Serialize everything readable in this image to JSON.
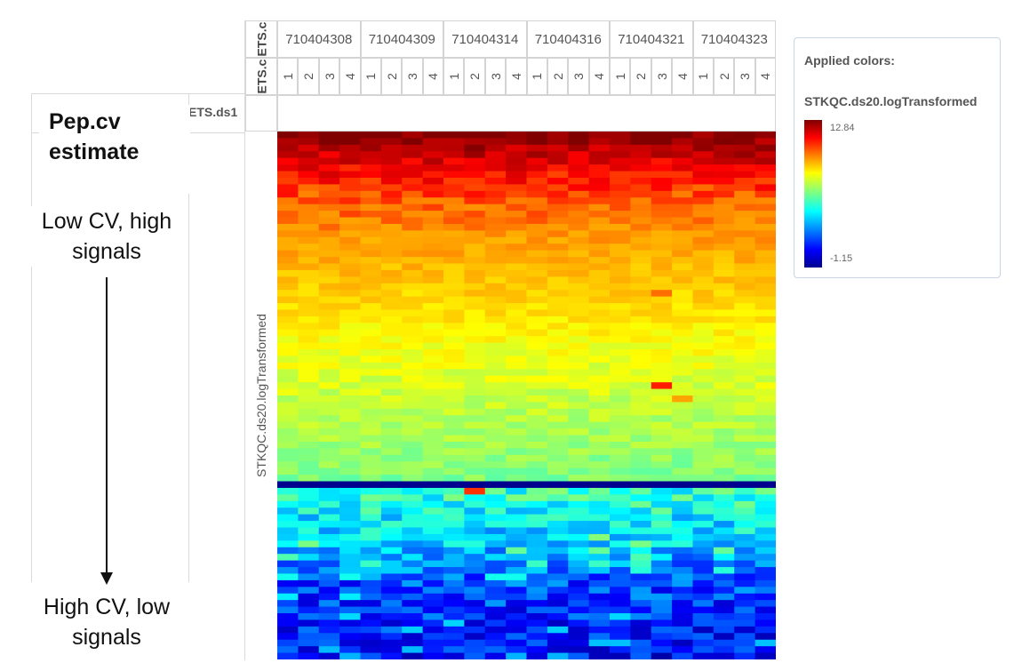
{
  "annotations": {
    "column_header_partial": "ETS.ds1",
    "pepcv_title": "Pep.cv estimate",
    "top_note": "Low CV, high signals",
    "bottom_note": "High CV, low signals"
  },
  "header": {
    "row1_label": "ETS.c",
    "row2_label": "ETS.c",
    "samples": [
      "710404308",
      "710404309",
      "710404314",
      "710404316",
      "710404321",
      "710404323"
    ],
    "replicates": [
      "1",
      "2",
      "3",
      "4"
    ]
  },
  "legend": {
    "title": "Applied colors:",
    "variable": "STKQC.ds20.logTransformed",
    "max_label": "12.84",
    "min_label": "-1.15"
  },
  "chart_data": {
    "type": "heatmap",
    "ylabel": "STKQC.ds20.logTransformed",
    "columns_per_sample": 4,
    "value_range": [
      -1.15,
      12.84
    ],
    "colormap": [
      "#00008f",
      "#0000ff",
      "#00ffff",
      "#ffff00",
      "#ff8000",
      "#ff0000",
      "#800000"
    ],
    "row_count": 80,
    "row_profile_anchors": [
      {
        "row": 0,
        "value": 12.8
      },
      {
        "row": 4,
        "value": 11.8
      },
      {
        "row": 10,
        "value": 10.6
      },
      {
        "row": 20,
        "value": 9.2
      },
      {
        "row": 30,
        "value": 8.0
      },
      {
        "row": 40,
        "value": 7.0
      },
      {
        "row": 52,
        "value": 6.0
      },
      {
        "row": 53,
        "value": -1.15
      },
      {
        "row": 54,
        "value": 4.8
      },
      {
        "row": 62,
        "value": 3.4
      },
      {
        "row": 68,
        "value": 1.6
      },
      {
        "row": 79,
        "value": 0.6
      }
    ]
  }
}
